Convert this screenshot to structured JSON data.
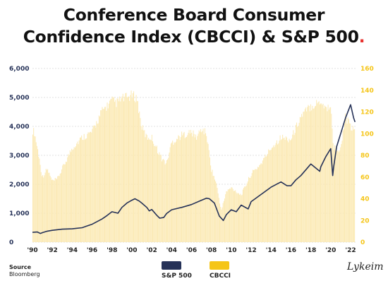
{
  "title": {
    "line1": "Conference Board Consumer",
    "line2": "Confidence Index (CBCCI) & S&P 500",
    "dot": "."
  },
  "source": {
    "label": "Source",
    "value": "Bloomberg"
  },
  "legend": [
    {
      "label": "S&P 500",
      "color": "#263258"
    },
    {
      "label": "CBCCI",
      "color": "#f5c518"
    }
  ],
  "logo": "Lykeim",
  "colors": {
    "sp500": "#263258",
    "cbcci": "#fbe9b3",
    "cbcci_ticks": "#f5c518",
    "left_ticks": "#263258",
    "title_dot": "#e8322f",
    "grid": "#d9d9d9"
  },
  "chart_data": {
    "type": "line+area",
    "x_ticks": [
      "'90",
      "'92",
      "'94",
      "'96",
      "'98",
      "'00",
      "'02",
      "'04",
      "'06",
      "'08",
      "'10",
      "'12",
      "'14",
      "'16",
      "'18",
      "'20",
      "'22"
    ],
    "left_axis": {
      "ticks": [
        "0",
        "1,000",
        "2,000",
        "3,000",
        "4,000",
        "5,000",
        "6,000"
      ],
      "ylim": [
        0,
        6000
      ]
    },
    "right_axis": {
      "ticks": [
        "0",
        "20",
        "40",
        "60",
        "80",
        "100",
        "120",
        "140",
        "160"
      ],
      "ylim": [
        0,
        160
      ]
    },
    "xlim": [
      1990,
      2022.5
    ],
    "grid": "horizontal dashed",
    "series": [
      {
        "name": "S&P 500",
        "axis": "left",
        "x": [
          1990.0,
          1990.5,
          1990.8,
          1991.0,
          1991.5,
          1992.0,
          1993.0,
          1994.0,
          1995.0,
          1995.5,
          1996.0,
          1997.0,
          1997.5,
          1998.0,
          1998.6,
          1999.0,
          1999.5,
          2000.0,
          2000.3,
          2000.7,
          2001.0,
          2001.5,
          2001.75,
          2002.0,
          2002.5,
          2002.8,
          2003.2,
          2003.5,
          2004.0,
          2005.0,
          2006.0,
          2007.0,
          2007.5,
          2007.8,
          2008.3,
          2008.8,
          2009.2,
          2009.5,
          2010.0,
          2010.5,
          2011.0,
          2011.7,
          2012.0,
          2013.0,
          2014.0,
          2015.0,
          2015.6,
          2016.0,
          2016.5,
          2017.0,
          2018.0,
          2018.9,
          2019.0,
          2019.5,
          2020.0,
          2020.2,
          2020.3,
          2020.6,
          2021.0,
          2021.5,
          2022.0,
          2022.3,
          2022.45
        ],
        "values": [
          340,
          350,
          300,
          330,
          380,
          410,
          450,
          460,
          500,
          560,
          620,
          800,
          920,
          1050,
          1000,
          1200,
          1350,
          1450,
          1500,
          1430,
          1350,
          1200,
          1080,
          1130,
          930,
          830,
          850,
          990,
          1120,
          1200,
          1300,
          1450,
          1520,
          1500,
          1350,
          900,
          750,
          950,
          1120,
          1050,
          1280,
          1150,
          1400,
          1650,
          1900,
          2080,
          1950,
          1950,
          2150,
          2300,
          2700,
          2450,
          2600,
          2950,
          3230,
          2300,
          2600,
          3300,
          3750,
          4300,
          4750,
          4300,
          4150
        ]
      },
      {
        "name": "CBCCI",
        "axis": "right",
        "x": [
          1990.0,
          1990.2,
          1990.6,
          1991.0,
          1991.5,
          1992.0,
          1992.5,
          1993.0,
          1994.0,
          1995.0,
          1996.0,
          1997.0,
          1997.5,
          1998.0,
          1998.5,
          1999.0,
          1999.5,
          2000.0,
          2000.5,
          2001.0,
          2001.5,
          2002.0,
          2003.0,
          2003.5,
          2004.0,
          2005.0,
          2006.0,
          2006.5,
          2007.0,
          2007.5,
          2008.0,
          2008.5,
          2009.0,
          2009.5,
          2010.0,
          2011.0,
          2011.5,
          2012.0,
          2013.0,
          2014.0,
          2015.0,
          2016.0,
          2017.0,
          2018.0,
          2018.5,
          2019.0,
          2019.5,
          2020.0,
          2020.3,
          2020.6,
          2021.0,
          2021.5,
          2022.0,
          2022.45
        ],
        "values": [
          107,
          105,
          85,
          62,
          70,
          58,
          60,
          70,
          90,
          100,
          105,
          125,
          130,
          135,
          133,
          137,
          138,
          140,
          138,
          110,
          100,
          100,
          80,
          75,
          95,
          102,
          105,
          100,
          108,
          104,
          70,
          56,
          30,
          48,
          52,
          45,
          55,
          65,
          75,
          90,
          100,
          98,
          120,
          130,
          132,
          135,
          128,
          130,
          90,
          90,
          88,
          120,
          110,
          105
        ]
      }
    ]
  }
}
